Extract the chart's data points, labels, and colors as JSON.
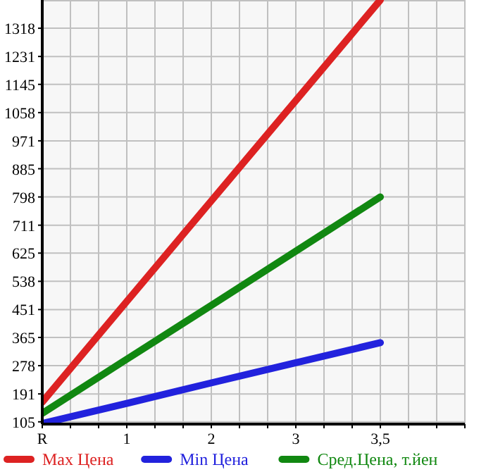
{
  "chart_data": {
    "type": "line",
    "categories": [
      "R",
      "1",
      "2",
      "3",
      "3,5"
    ],
    "ylim": [
      98,
      1405
    ],
    "yticks": [
      105,
      191,
      278,
      365,
      451,
      538,
      625,
      711,
      798,
      885,
      971,
      1058,
      1145,
      1231,
      1318
    ],
    "grid": true,
    "legend": "bottom",
    "marker": "none",
    "line_style": "solid",
    "series": [
      {
        "name": "Max Цена",
        "color": "#dd2222",
        "values": [
          166,
          476,
          786,
          1095,
          1405
        ]
      },
      {
        "name": "Min Цена",
        "color": "#2222dd",
        "values": [
          100,
          162,
          225,
          287,
          349
        ]
      },
      {
        "name": "Сред.Цена, т.йен",
        "color": "#118811",
        "values": [
          131,
          298,
          464,
          631,
          798
        ]
      }
    ]
  }
}
